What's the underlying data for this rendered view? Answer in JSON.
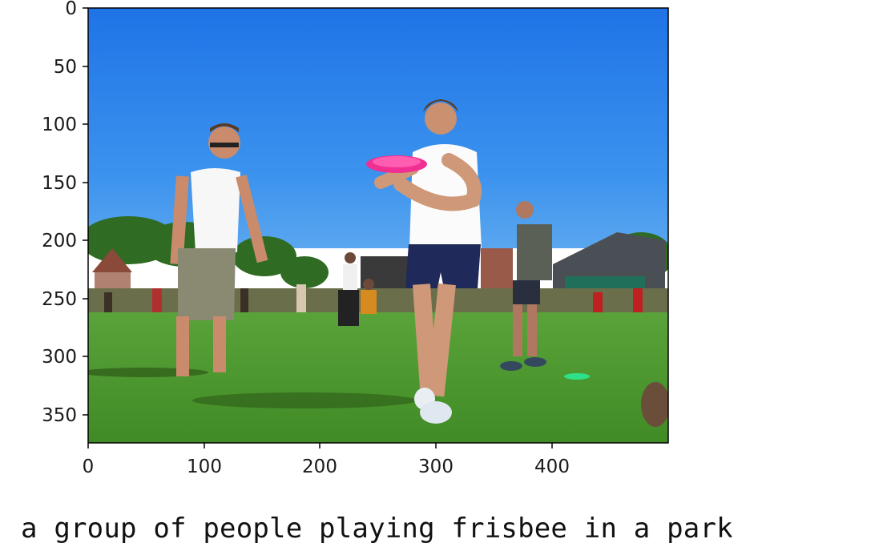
{
  "figure": {
    "x_ticks": [
      "0",
      "100",
      "200",
      "300",
      "400"
    ],
    "y_ticks": [
      "0",
      "50",
      "100",
      "150",
      "200",
      "250",
      "300",
      "350"
    ],
    "image_description_icon": "photo-frisbee-park"
  },
  "caption": "a group of people playing frisbee in a park",
  "colors": {
    "sky": "#2f86ea",
    "grass": "#4f9a2f",
    "frisbee": "#f02f92"
  }
}
